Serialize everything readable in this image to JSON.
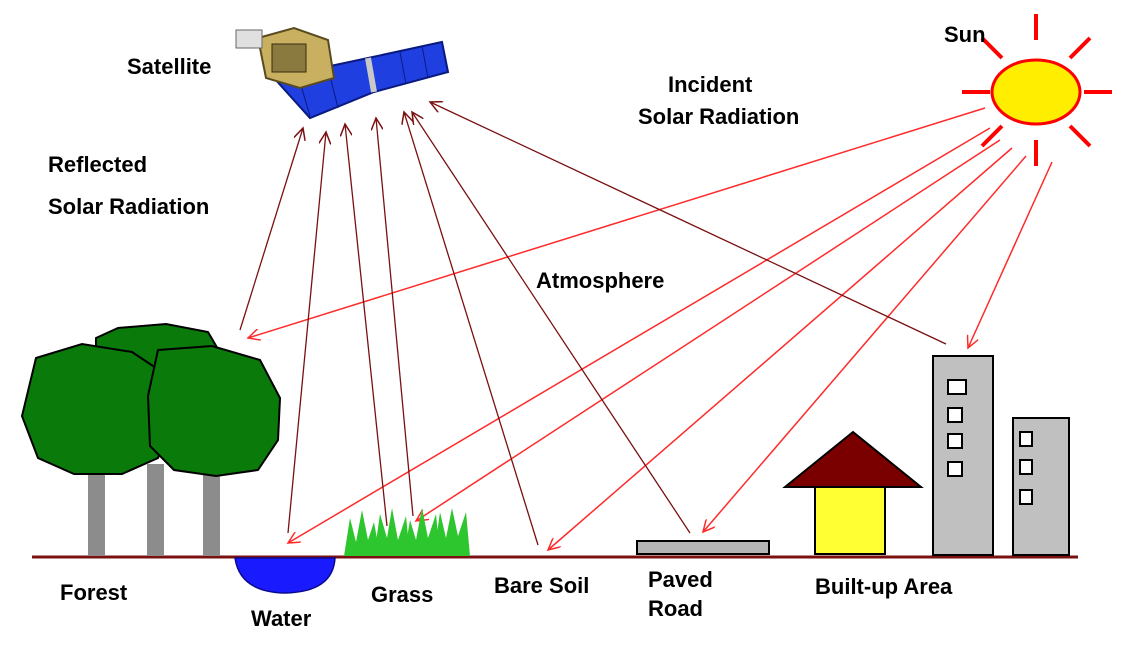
{
  "labels": {
    "satellite": "Satellite",
    "sun": "Sun",
    "incident_line1": "Incident",
    "incident_line2": "Solar Radiation",
    "reflected_line1": "Reflected",
    "reflected_line2": "Solar Radiation",
    "atmosphere": "Atmosphere",
    "forest": "Forest",
    "water": "Water",
    "grass": "Grass",
    "bare_soil": "Bare Soil",
    "paved_line1": "Paved",
    "paved_line2": "Road",
    "built_up": "Built-up Area"
  },
  "colors": {
    "incident_ray": "#ff2a2a",
    "reflected_ray": "#7a1010",
    "ground_line": "#7a1010",
    "sun_fill": "#ffee00",
    "sun_rays": "#ff0000",
    "tree_foliage": "#0a7a0a",
    "tree_trunk": "#8c8c8c",
    "water": "#1a1aff",
    "grass": "#2ec62e",
    "road": "#b4b4b4",
    "house_wall": "#ffff33",
    "house_roof": "#7a0000",
    "building": "#c0c0c0",
    "satellite_panel": "#1f3fe0",
    "satellite_body": "#c8b060"
  },
  "icons": [
    "sun-icon",
    "satellite-icon",
    "tree-icon",
    "water-icon",
    "grass-icon",
    "road-icon",
    "house-icon",
    "building-icon"
  ]
}
